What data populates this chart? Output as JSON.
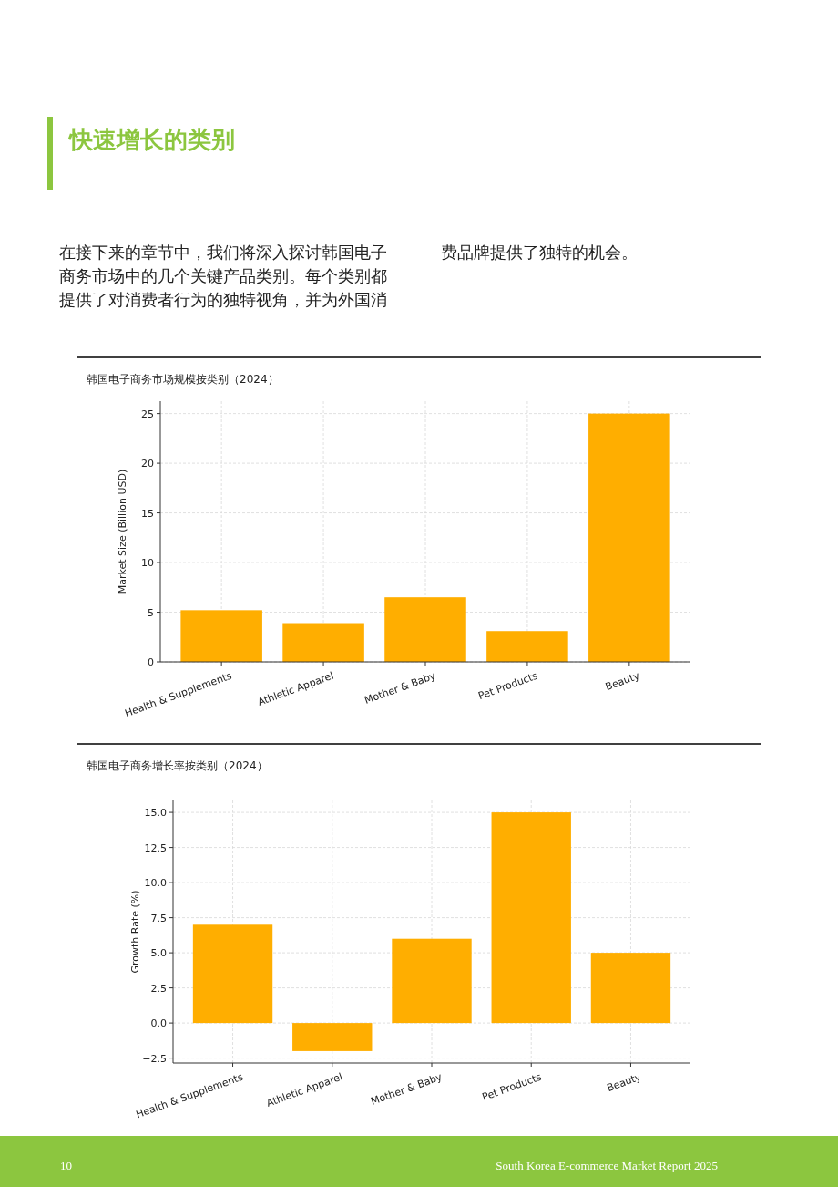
{
  "chart_data": [
    {
      "type": "other",
      "title": "快速增长的类别",
      "annotations": [
        "在接下来的章节中，我们将深入探讨韩国电子商务市场中的几个关键产品类别。每个类别都提供了对消费者行为的独特视角，并为外国消",
        "费品牌提供了独特的机会。",
        "10",
        "South Korea E-commerce Market Report 2025"
      ]
    },
    {
      "type": "bar",
      "title": "韩国电子商务市场规模按类别（2024）",
      "ylabel": "Market Size (Billion USD)",
      "categories": [
        "Health & Supplements",
        "Athletic Apparel",
        "Mother & Baby",
        "Pet Products",
        "Beauty"
      ],
      "values": [
        5.2,
        3.9,
        6.5,
        3.1,
        25
      ],
      "color": "#ffae00",
      "ylim": [
        0,
        26.25
      ],
      "yticks": [
        0,
        5,
        10,
        15,
        20,
        25
      ],
      "grid": true
    },
    {
      "type": "bar",
      "title": "韩国电子商务增长率按类别（2024）",
      "ylabel": "Growth Rate (%)",
      "categories": [
        "Health & Supplements",
        "Athletic Apparel",
        "Mother & Baby",
        "Pet Products",
        "Beauty"
      ],
      "values": [
        7,
        -2,
        6,
        15,
        5
      ],
      "color": "#ffae00",
      "ylim": [
        -2.85,
        15.85
      ],
      "yticks": [
        {
          "value": -2.5,
          "label": "−2.5"
        },
        {
          "value": 0,
          "label": "0.0"
        },
        {
          "value": 2.5,
          "label": "2.5"
        },
        {
          "value": 5,
          "label": "5.0"
        },
        {
          "value": 7.5,
          "label": "7.5"
        },
        {
          "value": 10,
          "label": "10.0"
        },
        {
          "value": 12.5,
          "label": "12.5"
        },
        {
          "value": 15,
          "label": "15.0"
        }
      ],
      "grid": true
    }
  ]
}
